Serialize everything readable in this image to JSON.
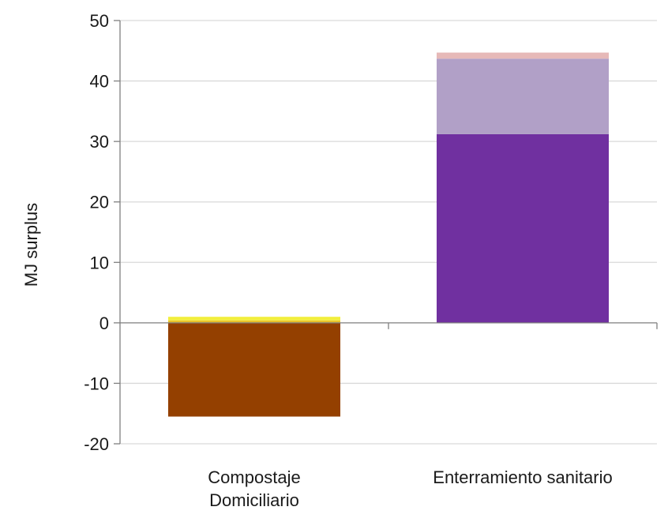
{
  "chart_data": {
    "type": "bar",
    "stacked": true,
    "title": "",
    "xlabel": "",
    "ylabel": "MJ surplus",
    "ylim": [
      -20,
      50
    ],
    "yticks": [
      -20,
      -10,
      0,
      10,
      20,
      30,
      40,
      50
    ],
    "grid": true,
    "legend": "none",
    "categories": [
      {
        "lines": [
          "Compostaje",
          "Domiciliario"
        ]
      },
      {
        "lines": [
          "Enterramiento sanitario"
        ]
      }
    ],
    "series": [
      {
        "color": "#944000",
        "values": [
          -15.5,
          0
        ]
      },
      {
        "color": "#e8c32a",
        "values": [
          0.4,
          0
        ]
      },
      {
        "color": "#f2ee3c",
        "values": [
          0.6,
          0
        ]
      },
      {
        "color": "#7030a0",
        "values": [
          0,
          31.2
        ]
      },
      {
        "color": "#b1a0c7",
        "values": [
          0,
          12.5
        ]
      },
      {
        "color": "#e6b9b8",
        "values": [
          0,
          1.0
        ]
      }
    ]
  }
}
